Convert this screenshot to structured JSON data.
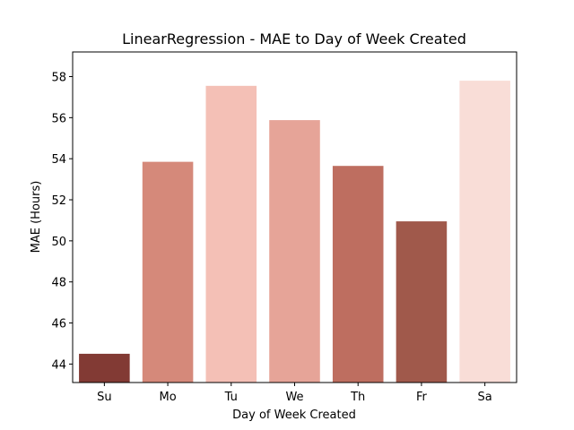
{
  "chart_data": {
    "type": "bar",
    "title": "LinearRegression - MAE to Day of Week Created",
    "xlabel": "Day of Week Created",
    "ylabel": "MAE (Hours)",
    "categories": [
      "Su",
      "Mo",
      "Tu",
      "We",
      "Th",
      "Fr",
      "Sa"
    ],
    "values": [
      44.5,
      53.85,
      57.55,
      55.88,
      53.65,
      50.95,
      57.8
    ],
    "bar_colors": [
      "#823a34",
      "#d5897a",
      "#f4c0b6",
      "#e6a498",
      "#be6e60",
      "#a0594b",
      "#f9ddd7"
    ],
    "ylim": [
      43.1,
      59.2
    ],
    "yticks": [
      44,
      46,
      48,
      50,
      52,
      54,
      56,
      58
    ],
    "grid": false,
    "legend": "none"
  }
}
